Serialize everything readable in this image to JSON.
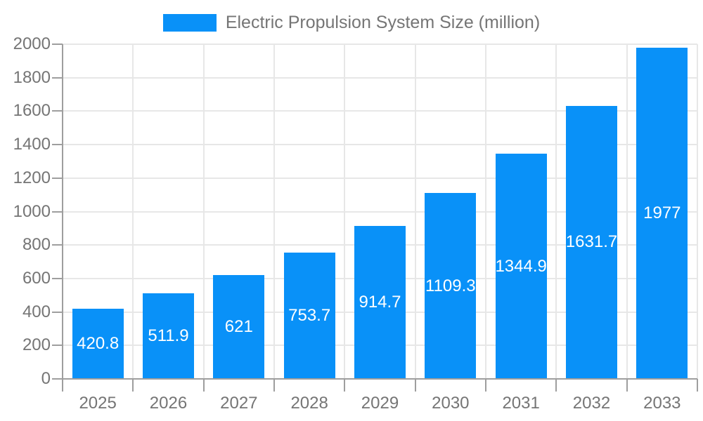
{
  "chart_data": {
    "type": "bar",
    "title": "Electric Propulsion System Size (million)",
    "categories": [
      "2025",
      "2026",
      "2027",
      "2028",
      "2029",
      "2030",
      "2031",
      "2032",
      "2033"
    ],
    "series": [
      {
        "name": "Electric Propulsion System Size (million)",
        "color": "#0991f8",
        "values": [
          420.8,
          511.9,
          621,
          753.7,
          914.7,
          1109.3,
          1344.9,
          1631.7,
          1977
        ]
      }
    ],
    "value_labels": [
      "420.8",
      "511.9",
      "621",
      "753.7",
      "914.7",
      "1109.3",
      "1344.9",
      "1631.7",
      "1977"
    ],
    "xlabel": "",
    "ylabel": "",
    "ylim": [
      0,
      2000
    ],
    "ytick_step": 200,
    "ytick_labels": [
      "0",
      "200",
      "400",
      "600",
      "800",
      "1000",
      "1200",
      "1400",
      "1600",
      "1800",
      "2000"
    ],
    "grid": "both",
    "legend_position": "top-center",
    "value_labels_inside_bars": true,
    "colors": {
      "bar": "#0991f8",
      "grid": "#e7e7e7",
      "axis": "#9e9e9e",
      "tick_text": "#757575",
      "legend_text": "#757575",
      "value_label": "#ffffff",
      "background": "#ffffff"
    }
  }
}
